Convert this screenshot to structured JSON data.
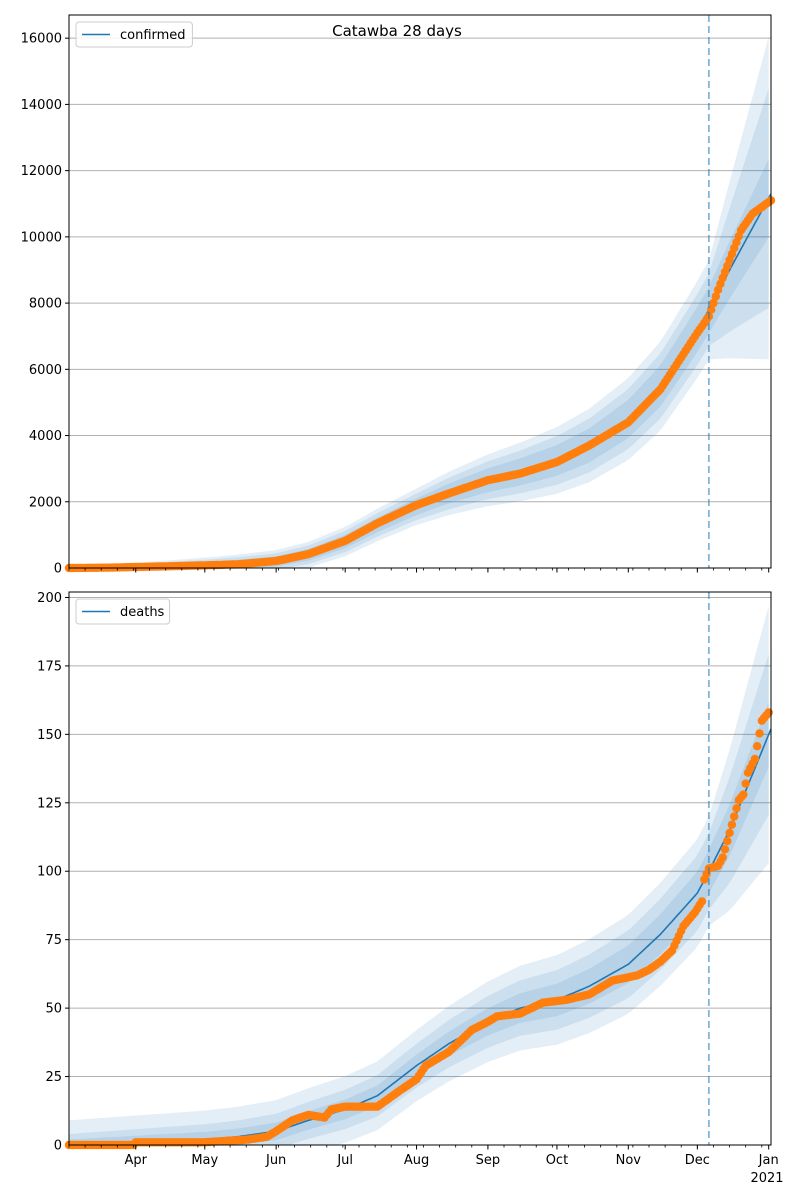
{
  "figure": {
    "title": "Catawba 28 days",
    "colors": {
      "model": "#1f77b4",
      "observed": "#ff7f0e",
      "grid": "#b0b0b0",
      "band": "#1f77b4"
    },
    "month_ticks": [
      "Apr",
      "May",
      "Jun",
      "Jul",
      "Aug",
      "Sep",
      "Oct",
      "Nov",
      "Dec",
      "Jan"
    ],
    "year_label": "2021",
    "forecast_start": "2020-12-06"
  },
  "chart_data": [
    {
      "type": "line",
      "name": "confirmed",
      "legend_label": "confirmed",
      "legend_position": "upper-left",
      "grid": "horizontal",
      "x_range": [
        "2020-03-03",
        "2021-01-02"
      ],
      "ylim": [
        0,
        16700
      ],
      "y_ticks": [
        0,
        2000,
        4000,
        6000,
        8000,
        10000,
        12000,
        14000,
        16000
      ],
      "model_line": [
        [
          "2020-03-03",
          0
        ],
        [
          "2020-04-01",
          30
        ],
        [
          "2020-05-01",
          80
        ],
        [
          "2020-05-15",
          120
        ],
        [
          "2020-06-01",
          200
        ],
        [
          "2020-06-15",
          400
        ],
        [
          "2020-07-01",
          800
        ],
        [
          "2020-07-15",
          1300
        ],
        [
          "2020-08-01",
          1850
        ],
        [
          "2020-08-15",
          2250
        ],
        [
          "2020-09-01",
          2650
        ],
        [
          "2020-09-15",
          2900
        ],
        [
          "2020-10-01",
          3250
        ],
        [
          "2020-10-15",
          3700
        ],
        [
          "2020-11-01",
          4500
        ],
        [
          "2020-11-15",
          5500
        ],
        [
          "2020-12-01",
          7200
        ],
        [
          "2020-12-06",
          7800
        ],
        [
          "2020-12-15",
          9000
        ],
        [
          "2021-01-02",
          11300
        ]
      ],
      "band_half_widths": [
        [
          [
            "2020-03-03",
            10
          ],
          [
            "2020-08-01",
            250
          ],
          [
            "2020-12-06",
            700
          ],
          [
            "2021-01-02",
            1200
          ]
        ],
        [
          [
            "2020-03-03",
            20
          ],
          [
            "2020-08-01",
            400
          ],
          [
            "2020-12-06",
            1100
          ],
          [
            "2021-01-02",
            3400
          ]
        ],
        [
          [
            "2020-03-03",
            30
          ],
          [
            "2020-08-01",
            550
          ],
          [
            "2020-12-06",
            1500
          ],
          [
            "2021-01-02",
            5000
          ]
        ]
      ],
      "observed": [
        [
          "2020-03-03",
          0
        ],
        [
          "2020-03-20",
          10
        ],
        [
          "2020-04-01",
          30
        ],
        [
          "2020-04-15",
          50
        ],
        [
          "2020-05-01",
          80
        ],
        [
          "2020-05-15",
          110
        ],
        [
          "2020-06-01",
          210
        ],
        [
          "2020-06-15",
          420
        ],
        [
          "2020-07-01",
          820
        ],
        [
          "2020-07-15",
          1350
        ],
        [
          "2020-08-01",
          1900
        ],
        [
          "2020-08-15",
          2250
        ],
        [
          "2020-09-01",
          2650
        ],
        [
          "2020-09-15",
          2850
        ],
        [
          "2020-10-01",
          3200
        ],
        [
          "2020-10-15",
          3700
        ],
        [
          "2020-11-01",
          4400
        ],
        [
          "2020-11-15",
          5400
        ],
        [
          "2020-12-01",
          7100
        ],
        [
          "2020-12-06",
          7600
        ],
        [
          "2020-12-10",
          8400
        ],
        [
          "2020-12-15",
          9300
        ],
        [
          "2020-12-20",
          10200
        ],
        [
          "2020-12-25",
          10700
        ],
        [
          "2021-01-02",
          11100
        ]
      ]
    },
    {
      "type": "line",
      "name": "deaths",
      "legend_label": "deaths",
      "legend_position": "upper-left",
      "grid": "horizontal",
      "x_range": [
        "2020-03-03",
        "2021-01-02"
      ],
      "ylim": [
        0,
        202
      ],
      "y_ticks": [
        0,
        25,
        50,
        75,
        100,
        125,
        150,
        175,
        200
      ],
      "model_line": [
        [
          "2020-03-03",
          0
        ],
        [
          "2020-04-01",
          1
        ],
        [
          "2020-05-01",
          2
        ],
        [
          "2020-05-15",
          3
        ],
        [
          "2020-06-01",
          5
        ],
        [
          "2020-06-15",
          9
        ],
        [
          "2020-07-01",
          13
        ],
        [
          "2020-07-15",
          18
        ],
        [
          "2020-08-01",
          29
        ],
        [
          "2020-08-15",
          37
        ],
        [
          "2020-09-01",
          45
        ],
        [
          "2020-09-15",
          50
        ],
        [
          "2020-10-01",
          53
        ],
        [
          "2020-10-15",
          58
        ],
        [
          "2020-11-01",
          66
        ],
        [
          "2020-11-15",
          77
        ],
        [
          "2020-12-01",
          92
        ],
        [
          "2020-12-06",
          100
        ],
        [
          "2020-12-15",
          115
        ],
        [
          "2021-01-02",
          152
        ]
      ],
      "band_half_widths": [
        [
          [
            "2020-03-03",
            2
          ],
          [
            "2020-08-01",
            4
          ],
          [
            "2020-12-06",
            8
          ],
          [
            "2021-01-02",
            12
          ]
        ],
        [
          [
            "2020-03-03",
            4
          ],
          [
            "2020-08-01",
            8
          ],
          [
            "2020-12-06",
            14
          ],
          [
            "2021-01-02",
            30
          ]
        ],
        [
          [
            "2020-03-03",
            9
          ],
          [
            "2020-08-01",
            13
          ],
          [
            "2020-12-06",
            20
          ],
          [
            "2021-01-02",
            48
          ]
        ]
      ],
      "observed": [
        [
          "2020-03-03",
          0
        ],
        [
          "2020-03-31",
          0
        ],
        [
          "2020-04-01",
          1
        ],
        [
          "2020-05-01",
          1
        ],
        [
          "2020-05-20",
          2
        ],
        [
          "2020-05-28",
          3
        ],
        [
          "2020-06-01",
          5
        ],
        [
          "2020-06-08",
          9
        ],
        [
          "2020-06-15",
          11
        ],
        [
          "2020-06-22",
          10
        ],
        [
          "2020-06-25",
          13
        ],
        [
          "2020-07-01",
          14
        ],
        [
          "2020-07-15",
          14
        ],
        [
          "2020-07-20",
          17
        ],
        [
          "2020-07-25",
          20
        ],
        [
          "2020-08-01",
          24
        ],
        [
          "2020-08-05",
          29
        ],
        [
          "2020-08-15",
          34
        ],
        [
          "2020-08-25",
          42
        ],
        [
          "2020-09-01",
          45
        ],
        [
          "2020-09-05",
          47
        ],
        [
          "2020-09-15",
          48
        ],
        [
          "2020-09-25",
          52
        ],
        [
          "2020-10-05",
          53
        ],
        [
          "2020-10-15",
          55
        ],
        [
          "2020-10-25",
          60
        ],
        [
          "2020-11-05",
          62
        ],
        [
          "2020-11-10",
          64
        ],
        [
          "2020-11-15",
          67
        ],
        [
          "2020-11-20",
          71
        ],
        [
          "2020-11-25",
          80
        ],
        [
          "2020-11-30",
          85
        ],
        [
          "2020-12-03",
          89
        ],
        [
          "2020-12-04",
          97
        ],
        [
          "2020-12-06",
          101
        ],
        [
          "2020-12-10",
          102
        ],
        [
          "2020-12-12",
          105
        ],
        [
          "2020-12-16",
          117
        ],
        [
          "2020-12-19",
          126
        ],
        [
          "2020-12-21",
          128
        ],
        [
          "2020-12-23",
          136
        ],
        [
          "2020-12-26",
          141
        ],
        [
          "2020-12-29",
          155
        ],
        [
          "2021-01-01",
          158
        ]
      ]
    }
  ]
}
